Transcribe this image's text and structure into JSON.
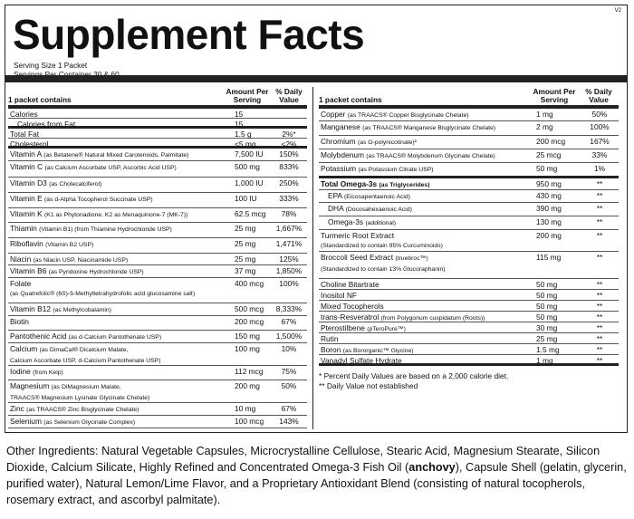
{
  "version": "V2",
  "title": "Supplement Facts",
  "serving_size": "Serving Size 1 Packet",
  "servings_per": "Servings Per Container 30 & 60",
  "header": {
    "contains": "1 packet contains",
    "amount_line1": "Amount Per",
    "amount_line2": "Serving",
    "dv_line1": "% Daily",
    "dv_line2": "Value"
  },
  "left_rows": [
    {
      "name": "Calories",
      "sub": "",
      "amount": "15",
      "dv": "",
      "h": 11,
      "ind": false,
      "thick": false
    },
    {
      "name": "Calories from Fat",
      "sub": "",
      "amount": "15",
      "dv": "",
      "h": 11,
      "ind": true,
      "thick": true
    },
    {
      "name": "Total Fat",
      "sub": "",
      "amount": "1.5 g",
      "dv": "2%*",
      "h": 11,
      "ind": false,
      "thick": false
    },
    {
      "name": "Cholesterol",
      "sub": "",
      "amount": "<5 mg",
      "dv": "<2%",
      "h": 11,
      "ind": false,
      "thick": true
    },
    {
      "name": "Vitamin A",
      "sub": "(as Betatene® Natural Mixed Carotenoids, Palmitate)",
      "amount": "7,500 IU",
      "dv": "150%",
      "h": 14,
      "ind": false,
      "thick": false
    },
    {
      "name": "Vitamin C",
      "sub": "(as Calcium Ascorbate USP, Ascorbic Acid USP)",
      "amount": "500 mg",
      "dv": "833%",
      "h": 18,
      "ind": false,
      "thick": false
    },
    {
      "name": "Vitamin D3",
      "sub": "(as Cholecalciferol)",
      "amount": "1,000 IU",
      "dv": "250%",
      "h": 17,
      "ind": false,
      "thick": false
    },
    {
      "name": "Vitamin E",
      "sub": "(as d-Alpha Tocopherol Succinate USP)",
      "amount": "100 IU",
      "dv": "333%",
      "h": 17,
      "ind": false,
      "thick": false
    },
    {
      "name": "Vitamin K",
      "sub": "(K1 as Phytonadione, K2 as Menaquinone-7 (MK-7))",
      "amount": "62.5 mcg",
      "dv": "78%",
      "h": 16,
      "ind": false,
      "thick": false
    },
    {
      "name": "Thiamin",
      "sub": "(Vitamin B1) (from Thiamine Hydrochloride USP)",
      "amount": "25 mg",
      "dv": "1,667%",
      "h": 17,
      "ind": false,
      "thick": false
    },
    {
      "name": "Riboflavin",
      "sub": "(Vitamin B2 USP)",
      "amount": "25 mg",
      "dv": "1,471%",
      "h": 17,
      "ind": false,
      "thick": false
    },
    {
      "name": "Niacin",
      "sub": "(as Niacin USP, Niacinamide USP)",
      "amount": "25 mg",
      "dv": "125%",
      "h": 13,
      "ind": false,
      "thick": false
    },
    {
      "name": "Vitamin B6",
      "sub": "(as Pyridoxine Hydrochloride USP)",
      "amount": "37 mg",
      "dv": "1,850%",
      "h": 14,
      "ind": false,
      "thick": false
    },
    {
      "name": "Folate",
      "sub": "",
      "sub2": "(as Quatrefolic® (6S)-5-Methyltetrahydrofolic acid glucosamine salt)",
      "amount": "400 mcg",
      "dv": "100%",
      "h": 28,
      "ind": false,
      "thick": false
    },
    {
      "name": "Vitamin B12",
      "sub": "(as Methylcobalamin)",
      "amount": "500 mcg",
      "dv": "8,333%",
      "h": 14,
      "ind": false,
      "thick": false
    },
    {
      "name": "Biotin",
      "sub": "",
      "amount": "200 mcg",
      "dv": "67%",
      "h": 16,
      "ind": false,
      "thick": false
    },
    {
      "name": "Pantothenic Acid",
      "sub": "(as d-Calcium Pantothenate USP)",
      "amount": "150 mg",
      "dv": "1,500%",
      "h": 14,
      "ind": false,
      "thick": false
    },
    {
      "name": "Calcium",
      "sub": "(as DimaCal® Dicalcium Malate,",
      "sub2": "Calcium Ascorbate USP, d-Calcium Pantothenate USP)",
      "amount": "100 mg",
      "dv": "10%",
      "h": 25,
      "ind": false,
      "thick": false
    },
    {
      "name": "Iodine",
      "sub": "(from Kelp)",
      "amount": "112 mcg",
      "dv": "75%",
      "h": 16,
      "ind": false,
      "thick": false
    },
    {
      "name": "Magnesium",
      "sub": "(as DiMagnesium Malate,",
      "sub2": "TRAACS® Magnesium Lysinate Glycinate Chelate)",
      "amount": "200 mg",
      "dv": "50%",
      "h": 25,
      "ind": false,
      "thick": false
    },
    {
      "name": "Zinc",
      "sub": "(as TRAACS® Zinc Bisglycinate Chelate)",
      "amount": "10 mg",
      "dv": "67%",
      "h": 14,
      "ind": false,
      "thick": false
    },
    {
      "name": "Selenium",
      "sub": "(as Selenium Glycinate Complex)",
      "amount": "100 mcg",
      "dv": "143%",
      "h": 14,
      "ind": false,
      "thick": false
    }
  ],
  "right_rows": [
    {
      "name": "Copper",
      "sub": "(as TRAACS® Copper Bisglycinate Chelate)",
      "amount": "1 mg",
      "dv": "50%",
      "h": 14,
      "ind": false,
      "thick": false,
      "bold": false
    },
    {
      "name": "Manganese",
      "sub": "(as TRAACS® Manganese Bisglycinate Chelate)",
      "amount": "2 mg",
      "dv": "100%",
      "h": 16,
      "ind": false,
      "thick": false,
      "bold": false
    },
    {
      "name": "Chromium",
      "sub": "(as O-polynicotinate)²",
      "amount": "200 mcg",
      "dv": "167%",
      "h": 15,
      "ind": false,
      "thick": false,
      "bold": false
    },
    {
      "name": "Molybdenum",
      "sub": "(as TRAACS® Molybdenum Glycinate Chelate)",
      "amount": "25 mcg",
      "dv": "33%",
      "h": 15,
      "ind": false,
      "thick": false,
      "bold": false
    },
    {
      "name": "Potassium",
      "sub": "(as Potassium Citrate USP)",
      "amount": "50 mg",
      "dv": "1%",
      "h": 17,
      "ind": false,
      "thick": true,
      "bold": false
    },
    {
      "name": "Total Omega-3s",
      "sub": "(as Triglycerides)",
      "amount": "950 mg",
      "dv": "**",
      "h": 13,
      "ind": false,
      "thick": false,
      "bold": true
    },
    {
      "name": "EPA",
      "sub": "(Eicosapentaenoic Acid)",
      "amount": "430 mg",
      "dv": "**",
      "h": 14,
      "ind": true,
      "thick": false,
      "bold": false
    },
    {
      "name": "DHA",
      "sub": "(Docosahexaenoic Acid)",
      "amount": "390 mg",
      "dv": "**",
      "h": 15,
      "ind": true,
      "thick": false,
      "bold": false
    },
    {
      "name": "Omega-3s",
      "sub": "(additional)",
      "amount": "130 mg",
      "dv": "**",
      "h": 15,
      "ind": true,
      "thick": false,
      "bold": false
    },
    {
      "name": "Turmeric Root Extract",
      "sub": "",
      "sub2": "(Standardized to contain 95% Curcuminoids)",
      "amount": "200 mg",
      "dv": "**",
      "h": 24,
      "ind": false,
      "thick": false,
      "bold": false
    },
    {
      "name": "Broccoli Seed Extract",
      "sub": "(truebroc™)",
      "sub2": "(Standardized to contain 13% Glucoraphanin)",
      "amount": "115 mg",
      "dv": "**",
      "h": 30,
      "ind": false,
      "thick": false,
      "bold": false
    },
    {
      "name": "Choline Bitartrate",
      "sub": "",
      "amount": "50 mg",
      "dv": "**",
      "h": 12,
      "ind": false,
      "thick": false,
      "bold": false
    },
    {
      "name": "Inositol NF",
      "sub": "",
      "amount": "50 mg",
      "dv": "**",
      "h": 12,
      "ind": false,
      "thick": false,
      "bold": false
    },
    {
      "name": "Mixed Tocopherols",
      "sub": "",
      "amount": "50 mg",
      "dv": "**",
      "h": 12,
      "ind": false,
      "thick": false,
      "bold": false
    },
    {
      "name": "trans-Resveratrol",
      "sub": "(from Polygonum cuspidatum (Roots))",
      "amount": "50 mg",
      "dv": "**",
      "h": 12,
      "ind": false,
      "thick": false,
      "bold": false
    },
    {
      "name": "Pterostilbene",
      "sub": "(pTeroPure™)",
      "amount": "30 mg",
      "dv": "**",
      "h": 12,
      "ind": false,
      "thick": false,
      "bold": false
    },
    {
      "name": "Rutin",
      "sub": "",
      "amount": "25 mg",
      "dv": "**",
      "h": 12,
      "ind": false,
      "thick": false,
      "bold": false
    },
    {
      "name": "Boron",
      "sub": "(as Bororganic™ Glycine)",
      "amount": "1.5 mg",
      "dv": "**",
      "h": 12,
      "ind": false,
      "thick": false,
      "bold": false
    },
    {
      "name": "Vanadyl Sulfate Hydrate",
      "sub": "",
      "amount": "1 mg",
      "dv": "**",
      "h": 12,
      "ind": false,
      "thick": true,
      "bold": false
    }
  ],
  "footnote1": "*  Percent Daily Values are based on a 2,000 calorie diet.",
  "footnote2": "**  Daily Value not established",
  "other_pre": "Other Ingredients: Natural Vegetable Capsules, Microcrystalline Cellulose, Stearic Acid, Magnesium Stearate, Silicon Dioxide, Calcium Silicate, Highly Refined and Concentrated Omega-3 Fish Oil (",
  "other_bold": "anchovy",
  "other_post": "), Capsule Shell (gelatin, glycerin, purified water), Natural Lemon/Lime Flavor, and a Proprietary Antioxidant Blend (consisting of natural tocopherols, rosemary extract, and ascorbyl palmitate)."
}
